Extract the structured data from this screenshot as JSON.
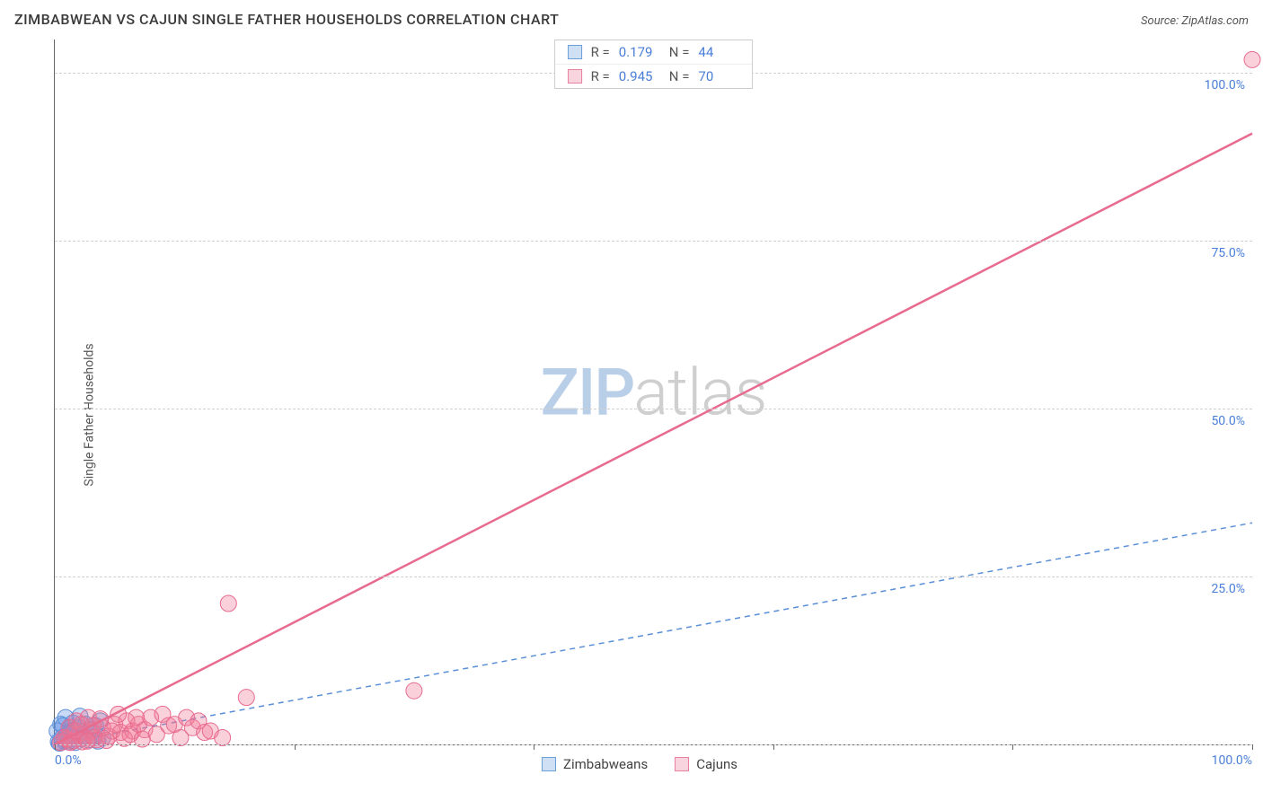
{
  "header": {
    "title": "ZIMBABWEAN VS CAJUN SINGLE FATHER HOUSEHOLDS CORRELATION CHART",
    "source": "Source: ZipAtlas.com"
  },
  "chart": {
    "type": "scatter",
    "ylabel": "Single Father Households",
    "watermark_zip": "ZIP",
    "watermark_atlas": "atlas",
    "xlim": [
      0,
      100
    ],
    "ylim": [
      0,
      105
    ],
    "x_ticks": [
      0,
      20,
      40,
      60,
      80,
      100
    ],
    "x_tick_labels_shown": {
      "0": "0.0%",
      "100": "100.0%"
    },
    "y_gridlines": [
      0,
      25,
      50,
      75,
      100
    ],
    "y_tick_labels": {
      "25": "25.0%",
      "50": "50.0%",
      "75": "75.0%",
      "100": "100.0%"
    },
    "background_color": "#ffffff",
    "grid_color": "#d0d0d0",
    "axis_color": "#666666",
    "tick_label_color": "#4a7fd8",
    "series": [
      {
        "name": "Zimbabweans",
        "color_fill": "rgba(100,150,230,0.35)",
        "color_stroke": "#5a8fd8",
        "swatch_fill": "#cfe0f5",
        "swatch_border": "#6a9fd8",
        "r_value": "0.179",
        "n_value": "44",
        "marker_radius": 9,
        "trend": {
          "x1": 0,
          "y1": 0,
          "x2": 100,
          "y2": 33,
          "dash": "6,5",
          "width": 1.5
        },
        "points": [
          [
            0.3,
            0.4
          ],
          [
            0.6,
            1.0
          ],
          [
            0.8,
            0.5
          ],
          [
            1.0,
            1.5
          ],
          [
            1.2,
            0.8
          ],
          [
            1.4,
            2.0
          ],
          [
            1.6,
            0.6
          ],
          [
            1.8,
            1.8
          ],
          [
            2.0,
            2.5
          ],
          [
            2.2,
            0.9
          ],
          [
            2.4,
            1.2
          ],
          [
            2.6,
            3.0
          ],
          [
            2.8,
            0.7
          ],
          [
            3.0,
            2.2
          ],
          [
            3.2,
            1.1
          ],
          [
            3.4,
            2.8
          ],
          [
            3.6,
            0.5
          ],
          [
            3.8,
            3.5
          ],
          [
            4.0,
            1.0
          ],
          [
            0.5,
            3.0
          ],
          [
            0.9,
            4.0
          ],
          [
            1.3,
            2.5
          ],
          [
            1.7,
            0.3
          ],
          [
            2.1,
            4.2
          ],
          [
            0.2,
            2.0
          ],
          [
            0.4,
            0.2
          ],
          [
            0.7,
            2.8
          ],
          [
            1.1,
            0.4
          ],
          [
            1.5,
            3.2
          ]
        ]
      },
      {
        "name": "Cajuns",
        "color_fill": "rgba(240,120,150,0.35)",
        "color_stroke": "#e86b8f",
        "swatch_fill": "#f7d4de",
        "swatch_border": "#ea7fa0",
        "r_value": "0.945",
        "n_value": "70",
        "marker_radius": 9,
        "trend": {
          "x1": 0,
          "y1": 0,
          "x2": 100,
          "y2": 91,
          "dash": "none",
          "width": 2.5
        },
        "points": [
          [
            0.5,
            0.3
          ],
          [
            1.0,
            0.8
          ],
          [
            1.5,
            0.5
          ],
          [
            2.0,
            1.5
          ],
          [
            2.5,
            1.0
          ],
          [
            3.0,
            2.0
          ],
          [
            3.5,
            0.7
          ],
          [
            4.0,
            2.5
          ],
          [
            4.5,
            1.2
          ],
          [
            5.0,
            3.0
          ],
          [
            5.5,
            1.8
          ],
          [
            6.0,
            3.5
          ],
          [
            6.5,
            2.0
          ],
          [
            7.0,
            3.0
          ],
          [
            7.5,
            2.2
          ],
          [
            8.0,
            4.0
          ],
          [
            8.5,
            1.5
          ],
          [
            9.0,
            4.5
          ],
          [
            9.5,
            2.8
          ],
          [
            10.0,
            3.0
          ],
          [
            10.5,
            1.0
          ],
          [
            11.0,
            4.0
          ],
          [
            11.5,
            2.5
          ],
          [
            12.0,
            3.5
          ],
          [
            12.5,
            1.8
          ],
          [
            13.0,
            2.0
          ],
          [
            14.0,
            1.0
          ],
          [
            1.2,
            2.5
          ],
          [
            1.8,
            3.5
          ],
          [
            2.3,
            0.4
          ],
          [
            2.8,
            4.0
          ],
          [
            3.3,
            1.0
          ],
          [
            3.8,
            3.8
          ],
          [
            4.3,
            0.6
          ],
          [
            4.8,
            2.0
          ],
          [
            5.3,
            4.5
          ],
          [
            5.8,
            0.9
          ],
          [
            6.3,
            1.5
          ],
          [
            6.8,
            4.0
          ],
          [
            7.3,
            0.8
          ],
          [
            0.8,
            1.0
          ],
          [
            1.3,
            0.3
          ],
          [
            1.7,
            2.0
          ],
          [
            2.2,
            3.0
          ],
          [
            2.7,
            0.5
          ],
          [
            3.2,
            2.8
          ],
          [
            14.5,
            21.0
          ],
          [
            16.0,
            7.0
          ],
          [
            30.0,
            8.0
          ],
          [
            100.0,
            102.0
          ]
        ]
      }
    ]
  }
}
